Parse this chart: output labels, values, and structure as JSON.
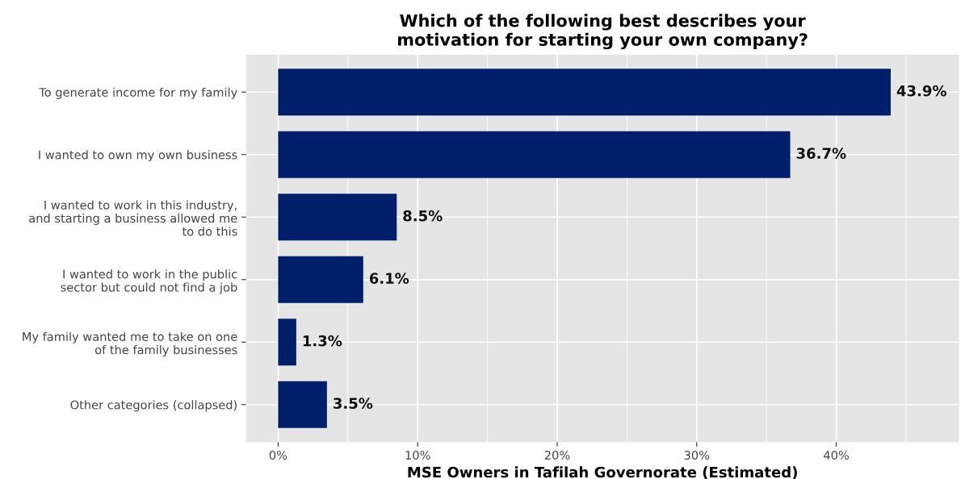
{
  "chart_data": {
    "type": "bar",
    "orientation": "horizontal",
    "title": "Which of the following best describes your\nmotivation for starting your own company?",
    "xlabel": "MSE Owners in Tafilah Governorate (Estimated)",
    "categories": [
      "To generate income for my family",
      "I wanted to own my own business",
      "I wanted to work in this industry,\nand starting a business allowed me\nto do this",
      "I wanted to work in the public\nsector but could not find a job",
      "My family wanted me to take on one\nof the family businesses",
      "Other categories (collapsed)"
    ],
    "values": [
      43.9,
      36.7,
      8.5,
      6.1,
      1.3,
      3.5
    ],
    "value_labels": [
      "43.9%",
      "36.7%",
      "8.5%",
      "6.1%",
      "1.3%",
      "3.5%"
    ],
    "color": "#001f6b",
    "xlim": [
      -2.3,
      48.8
    ],
    "xticks": [
      {
        "value": 0,
        "label": "0%"
      },
      {
        "value": 10,
        "label": "10%"
      },
      {
        "value": 20,
        "label": "20%"
      },
      {
        "value": 30,
        "label": "30%"
      },
      {
        "value": 40,
        "label": "40%"
      }
    ],
    "grid": true,
    "legend": false
  }
}
